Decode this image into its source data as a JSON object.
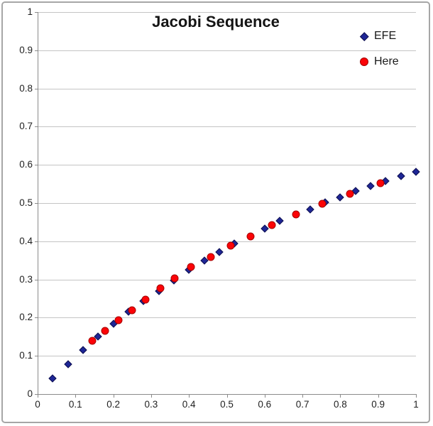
{
  "chart_data": {
    "type": "scatter",
    "title": "Jacobi Sequence",
    "xlabel": "",
    "ylabel": "",
    "xlim": [
      0,
      1
    ],
    "ylim": [
      0,
      1
    ],
    "x_tick_labels": [
      "0",
      "0.1",
      "0.2",
      "0.3",
      "0.4",
      "0.5",
      "0.6",
      "0.7",
      "0.8",
      "0.9",
      "1"
    ],
    "y_tick_labels": [
      "0",
      "0.1",
      "0.2",
      "0.3",
      "0.4",
      "0.5",
      "0.6",
      "0.7",
      "0.8",
      "0.9",
      "1"
    ],
    "grid": "horizontal",
    "legend_position": "top-right",
    "series": [
      {
        "name": "EFE",
        "marker": "diamond",
        "color": "#1E2696",
        "border_color": "#11114F",
        "points": [
          [
            0.04,
            0.04
          ],
          [
            0.08,
            0.078
          ],
          [
            0.12,
            0.115
          ],
          [
            0.16,
            0.151
          ],
          [
            0.2,
            0.184
          ],
          [
            0.24,
            0.215
          ],
          [
            0.28,
            0.243
          ],
          [
            0.32,
            0.269
          ],
          [
            0.36,
            0.298
          ],
          [
            0.4,
            0.326
          ],
          [
            0.44,
            0.35
          ],
          [
            0.48,
            0.372
          ],
          [
            0.52,
            0.394
          ],
          [
            0.6,
            0.433
          ],
          [
            0.64,
            0.453
          ],
          [
            0.72,
            0.484
          ],
          [
            0.76,
            0.502
          ],
          [
            0.8,
            0.515
          ],
          [
            0.84,
            0.531
          ],
          [
            0.88,
            0.545
          ],
          [
            0.92,
            0.558
          ],
          [
            0.96,
            0.57
          ],
          [
            1.0,
            0.581
          ]
        ]
      },
      {
        "name": "Here",
        "marker": "circle",
        "color": "#FB0307",
        "border_color": "#A50000",
        "points": [
          [
            0.145,
            0.139
          ],
          [
            0.178,
            0.165
          ],
          [
            0.213,
            0.194
          ],
          [
            0.249,
            0.22
          ],
          [
            0.285,
            0.248
          ],
          [
            0.325,
            0.277
          ],
          [
            0.363,
            0.303
          ],
          [
            0.406,
            0.332
          ],
          [
            0.458,
            0.359
          ],
          [
            0.51,
            0.388
          ],
          [
            0.563,
            0.412
          ],
          [
            0.62,
            0.443
          ],
          [
            0.682,
            0.47
          ],
          [
            0.752,
            0.498
          ],
          [
            0.826,
            0.525
          ],
          [
            0.906,
            0.552
          ]
        ]
      }
    ]
  },
  "colors": {
    "gridline": "#C4C4C4",
    "axis": "#8A8A8A",
    "text": "#1f1f1f",
    "frame_border": "#A6A6A6",
    "background": "#FFFFFF"
  }
}
